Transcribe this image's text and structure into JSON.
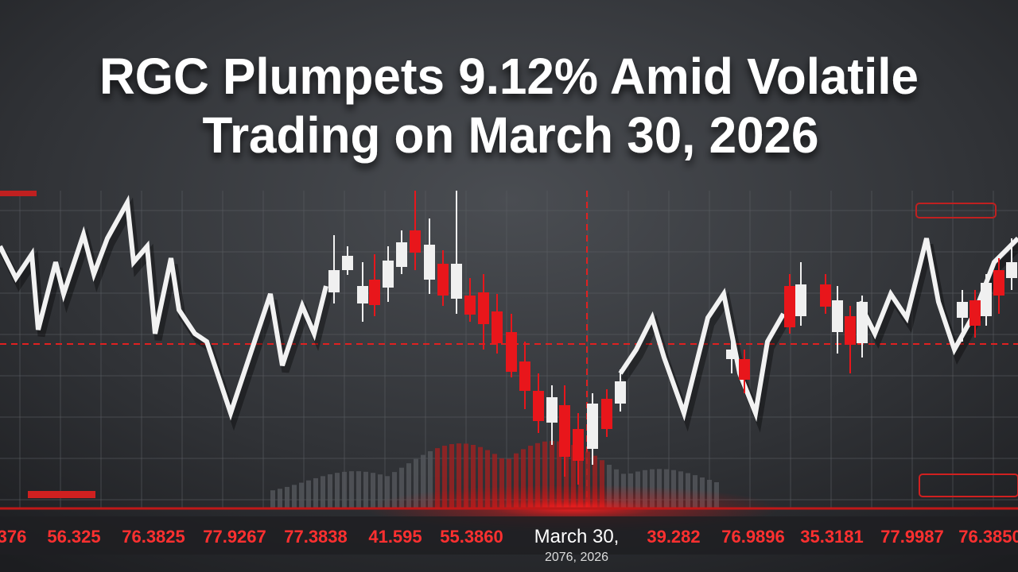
{
  "header": {
    "title_lines": [
      "RGC Plumpets 9.12% Amid Volatile",
      "Trading on March 30, 2026"
    ]
  },
  "ticker_strip": {
    "labels": [
      "376",
      "56.325",
      "76.3825",
      "77.9267",
      "77.3838",
      "41.595",
      "55.3860",
      "March 30,",
      "39.282",
      "76.9896",
      "35.3181",
      "77.9987",
      "76.3850"
    ],
    "date_subline": "2076, 2026"
  }
}
